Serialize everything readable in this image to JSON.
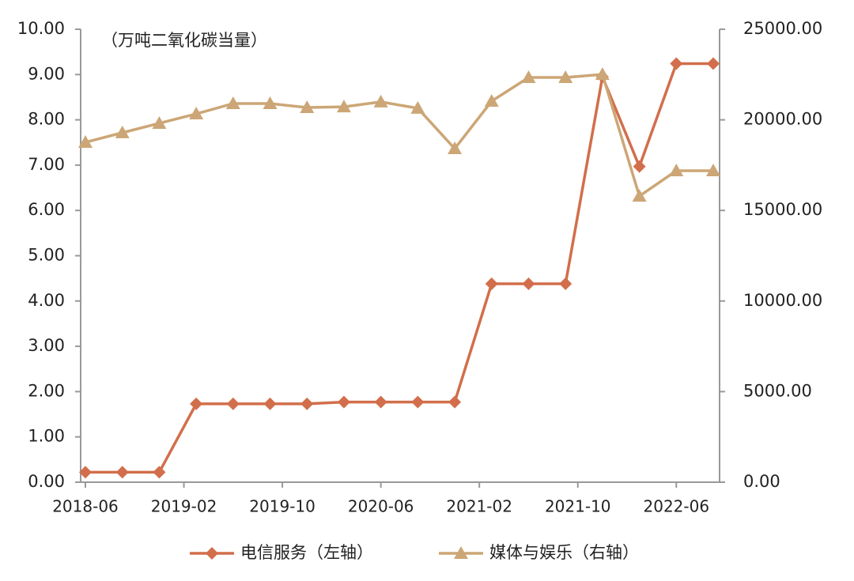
{
  "chart_data": {
    "type": "line",
    "annotation": "（万吨二氧化碳当量）",
    "x": [
      "2018-06",
      "2018-09",
      "2018-12",
      "2019-03",
      "2019-06",
      "2019-09",
      "2019-12",
      "2020-03",
      "2020-06",
      "2020-09",
      "2020-12",
      "2021-03",
      "2021-06",
      "2021-09",
      "2021-12",
      "2022-03",
      "2022-06",
      "2022-09"
    ],
    "xlim": [
      "2018-06",
      "2022-09"
    ],
    "xticks": [
      "2018-06",
      "2019-02",
      "2019-10",
      "2020-06",
      "2021-02",
      "2021-10",
      "2022-06"
    ],
    "ylim": [
      0,
      10
    ],
    "yticks": [
      {
        "value": 0,
        "label": "0.00"
      },
      {
        "value": 1,
        "label": "1.00"
      },
      {
        "value": 2,
        "label": "2.00"
      },
      {
        "value": 3,
        "label": "3.00"
      },
      {
        "value": 4,
        "label": "4.00"
      },
      {
        "value": 5,
        "label": "5.00"
      },
      {
        "value": 6,
        "label": "6.00"
      },
      {
        "value": 7,
        "label": "7.00"
      },
      {
        "value": 8,
        "label": "8.00"
      },
      {
        "value": 9,
        "label": "9.00"
      },
      {
        "value": 10,
        "label": "10.00"
      }
    ],
    "y2lim": [
      0,
      25000
    ],
    "y2ticks": [
      {
        "value": 0,
        "label": "0.00"
      },
      {
        "value": 5000,
        "label": "5000.00"
      },
      {
        "value": 10000,
        "label": "10000.00"
      },
      {
        "value": 15000,
        "label": "15000.00"
      },
      {
        "value": 20000,
        "label": "20000.00"
      },
      {
        "value": 25000,
        "label": "25000.00"
      }
    ],
    "grid": false,
    "legend": "bottom",
    "series": [
      {
        "name": "电信服务（左轴）",
        "color": "#d26e4b",
        "marker": "diamond",
        "axis": "y",
        "values": [
          0.22,
          0.22,
          0.22,
          1.73,
          1.73,
          1.73,
          1.73,
          1.77,
          1.77,
          1.77,
          1.77,
          4.38,
          4.38,
          4.38,
          8.95,
          6.97,
          9.24,
          9.24
        ]
      },
      {
        "name": "媒体与娱乐（右轴）",
        "color": "#cca676",
        "marker": "triangle",
        "axis": "y2",
        "values": [
          18760,
          19290,
          19810,
          20330,
          20900,
          20900,
          20680,
          20720,
          20990,
          20640,
          18410,
          21030,
          22340,
          22340,
          22510,
          15790,
          17190,
          17190
        ]
      }
    ]
  }
}
